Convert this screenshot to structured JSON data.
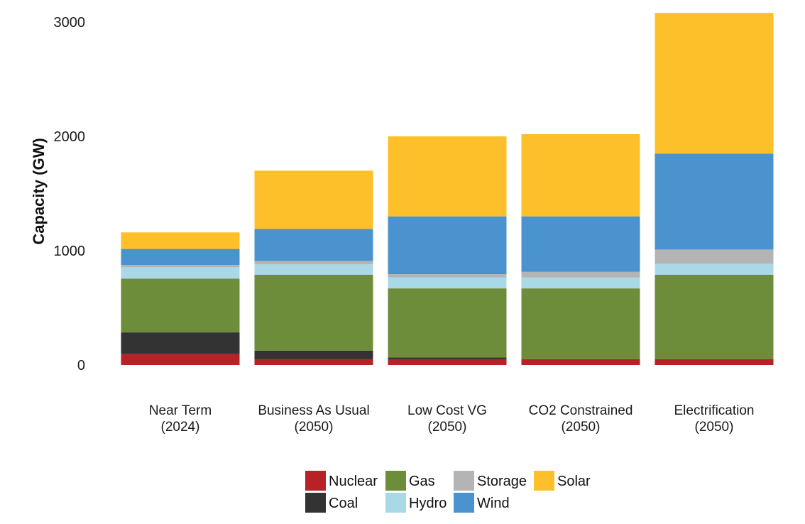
{
  "chart_data": {
    "type": "bar",
    "stacked": true,
    "title": "",
    "xlabel": "",
    "ylabel": "Capacity (GW)",
    "ylim": [
      0,
      3100
    ],
    "yticks": [
      0,
      1000,
      2000,
      3000
    ],
    "grid": false,
    "legend_position": "bottom",
    "categories": [
      [
        "Near Term",
        "(2024)"
      ],
      [
        "Business As Usual",
        "(2050)"
      ],
      [
        "Low Cost VG",
        "(2050)"
      ],
      [
        "CO2 Constrained",
        "(2050)"
      ],
      [
        "Electrification",
        "(2050)"
      ]
    ],
    "series": [
      {
        "name": "Nuclear",
        "color": "#b82126",
        "values": [
          95,
          50,
          50,
          50,
          50
        ]
      },
      {
        "name": "Coal",
        "color": "#333333",
        "values": [
          190,
          75,
          15,
          0,
          0
        ]
      },
      {
        "name": "Gas",
        "color": "#6e8d3a",
        "values": [
          470,
          665,
          605,
          620,
          740
        ]
      },
      {
        "name": "Hydro",
        "color": "#a9d9e6",
        "values": [
          100,
          90,
          95,
          95,
          95
        ]
      },
      {
        "name": "Storage",
        "color": "#b4b4b4",
        "values": [
          20,
          30,
          30,
          50,
          125
        ]
      },
      {
        "name": "Wind",
        "color": "#4a93cf",
        "values": [
          140,
          280,
          505,
          485,
          840
        ]
      },
      {
        "name": "Solar",
        "color": "#fec02a",
        "values": [
          145,
          510,
          700,
          720,
          1230
        ]
      }
    ],
    "legend_layout": [
      [
        "Nuclear",
        "Gas",
        "Storage",
        "Solar"
      ],
      [
        "Coal",
        "Hydro",
        "Wind"
      ]
    ]
  }
}
